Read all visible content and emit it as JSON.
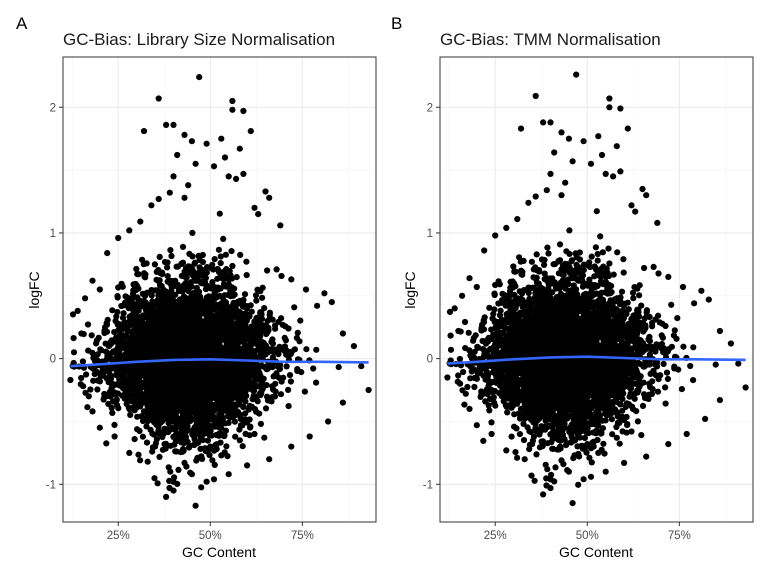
{
  "colors": {
    "background": "#ffffff",
    "panel_border": "#333333",
    "grid_major": "#ebebeb",
    "grid_minor": "#f5f5f5",
    "points": "#000000",
    "smooth_line": "#3366ff",
    "axis_text": "#4d4d4d",
    "title_text": "#1a1a1a"
  },
  "chart_data": [
    {
      "type": "scatter",
      "tag": "A",
      "title": "GC-Bias: Library Size Normalisation",
      "xlabel": "GC Content",
      "ylabel": "logFC",
      "xlim": [
        0.1,
        0.95
      ],
      "ylim": [
        -1.3,
        2.4
      ],
      "x_ticks": [
        0.25,
        0.5,
        0.75
      ],
      "x_tick_labels": [
        "25%",
        "50%",
        "75%"
      ],
      "y_ticks": [
        -1,
        0,
        1,
        2
      ],
      "y_tick_labels": [
        "-1",
        "0",
        "1",
        "2"
      ],
      "grid": true,
      "smooth": {
        "x": [
          0.12,
          0.2,
          0.3,
          0.4,
          0.5,
          0.6,
          0.7,
          0.8,
          0.93
        ],
        "y": [
          -0.06,
          -0.045,
          -0.025,
          -0.01,
          -0.005,
          -0.015,
          -0.025,
          -0.025,
          -0.03
        ]
      },
      "points_outliers": [
        [
          0.47,
          2.24
        ],
        [
          0.36,
          2.07
        ],
        [
          0.56,
          2.05
        ],
        [
          0.56,
          1.98
        ],
        [
          0.59,
          1.97
        ],
        [
          0.32,
          1.81
        ],
        [
          0.38,
          1.86
        ],
        [
          0.4,
          1.86
        ],
        [
          0.43,
          1.78
        ],
        [
          0.45,
          1.73
        ],
        [
          0.49,
          1.71
        ],
        [
          0.53,
          1.75
        ],
        [
          0.54,
          1.6
        ],
        [
          0.58,
          1.67
        ],
        [
          0.61,
          1.81
        ],
        [
          0.41,
          1.62
        ],
        [
          0.46,
          1.55
        ],
        [
          0.51,
          1.53
        ],
        [
          0.55,
          1.45
        ],
        [
          0.57,
          1.43
        ],
        [
          0.59,
          1.47
        ],
        [
          0.65,
          1.33
        ],
        [
          0.66,
          1.28
        ],
        [
          0.62,
          1.2
        ],
        [
          0.44,
          1.38
        ],
        [
          0.39,
          1.32
        ],
        [
          0.36,
          1.27
        ],
        [
          0.34,
          1.22
        ],
        [
          0.4,
          1.45
        ],
        [
          0.43,
          1.28
        ],
        [
          0.69,
          1.06
        ],
        [
          0.63,
          1.15
        ],
        [
          0.31,
          1.09
        ],
        [
          0.28,
          1.02
        ],
        [
          0.25,
          0.96
        ],
        [
          0.22,
          0.84
        ],
        [
          0.18,
          0.62
        ],
        [
          0.16,
          0.48
        ],
        [
          0.14,
          0.38
        ],
        [
          0.15,
          0.2
        ],
        [
          0.12,
          -0.17
        ],
        [
          0.13,
          0.05
        ],
        [
          0.17,
          -0.3
        ],
        [
          0.2,
          0.55
        ],
        [
          0.93,
          -0.25
        ],
        [
          0.91,
          -0.06
        ],
        [
          0.89,
          0.1
        ],
        [
          0.86,
          0.2
        ],
        [
          0.83,
          0.45
        ],
        [
          0.81,
          0.52
        ],
        [
          0.79,
          0.42
        ],
        [
          0.76,
          0.55
        ],
        [
          0.72,
          0.63
        ],
        [
          0.68,
          0.71
        ],
        [
          0.86,
          -0.35
        ],
        [
          0.82,
          -0.5
        ],
        [
          0.77,
          -0.62
        ],
        [
          0.72,
          -0.7
        ],
        [
          0.66,
          -0.8
        ],
        [
          0.6,
          -0.85
        ],
        [
          0.55,
          -0.92
        ],
        [
          0.51,
          -0.96
        ],
        [
          0.45,
          -0.92
        ],
        [
          0.4,
          -0.98
        ],
        [
          0.38,
          -1.1
        ],
        [
          0.4,
          -1.05
        ],
        [
          0.46,
          -1.17
        ],
        [
          0.33,
          -0.82
        ],
        [
          0.28,
          -0.75
        ],
        [
          0.24,
          -0.62
        ],
        [
          0.2,
          -0.55
        ],
        [
          0.18,
          -0.42
        ],
        [
          0.5,
          -0.7
        ],
        [
          0.53,
          -0.77
        ],
        [
          0.58,
          -0.65
        ],
        [
          0.62,
          -0.6
        ],
        [
          0.35,
          -0.7
        ],
        [
          0.43,
          -0.83
        ]
      ]
    },
    {
      "type": "scatter",
      "tag": "B",
      "title": "GC-Bias: TMM Normalisation",
      "xlabel": "GC Content",
      "ylabel": "logFC",
      "xlim": [
        0.1,
        0.95
      ],
      "ylim": [
        -1.3,
        2.4
      ],
      "x_ticks": [
        0.25,
        0.5,
        0.75
      ],
      "x_tick_labels": [
        "25%",
        "50%",
        "75%"
      ],
      "y_ticks": [
        -1,
        0,
        1,
        2
      ],
      "y_tick_labels": [
        "-1",
        "0",
        "1",
        "2"
      ],
      "grid": true,
      "smooth": {
        "x": [
          0.12,
          0.2,
          0.3,
          0.4,
          0.5,
          0.6,
          0.7,
          0.8,
          0.93
        ],
        "y": [
          -0.04,
          -0.025,
          -0.005,
          0.01,
          0.015,
          0.005,
          -0.005,
          -0.005,
          -0.01
        ]
      },
      "points_outliers": [
        [
          0.47,
          2.26
        ],
        [
          0.36,
          2.09
        ],
        [
          0.56,
          2.07
        ],
        [
          0.56,
          2.0
        ],
        [
          0.59,
          1.99
        ],
        [
          0.32,
          1.83
        ],
        [
          0.38,
          1.88
        ],
        [
          0.4,
          1.88
        ],
        [
          0.43,
          1.8
        ],
        [
          0.45,
          1.75
        ],
        [
          0.49,
          1.73
        ],
        [
          0.53,
          1.77
        ],
        [
          0.54,
          1.62
        ],
        [
          0.58,
          1.69
        ],
        [
          0.61,
          1.83
        ],
        [
          0.41,
          1.64
        ],
        [
          0.46,
          1.57
        ],
        [
          0.51,
          1.55
        ],
        [
          0.55,
          1.47
        ],
        [
          0.57,
          1.45
        ],
        [
          0.59,
          1.49
        ],
        [
          0.65,
          1.35
        ],
        [
          0.66,
          1.3
        ],
        [
          0.62,
          1.22
        ],
        [
          0.44,
          1.4
        ],
        [
          0.39,
          1.34
        ],
        [
          0.36,
          1.29
        ],
        [
          0.34,
          1.24
        ],
        [
          0.4,
          1.47
        ],
        [
          0.43,
          1.3
        ],
        [
          0.69,
          1.08
        ],
        [
          0.63,
          1.17
        ],
        [
          0.31,
          1.11
        ],
        [
          0.28,
          1.04
        ],
        [
          0.25,
          0.98
        ],
        [
          0.22,
          0.86
        ],
        [
          0.18,
          0.64
        ],
        [
          0.16,
          0.5
        ],
        [
          0.14,
          0.4
        ],
        [
          0.15,
          0.22
        ],
        [
          0.12,
          -0.15
        ],
        [
          0.13,
          0.07
        ],
        [
          0.17,
          -0.28
        ],
        [
          0.2,
          0.57
        ],
        [
          0.93,
          -0.23
        ],
        [
          0.91,
          -0.04
        ],
        [
          0.89,
          0.12
        ],
        [
          0.86,
          0.22
        ],
        [
          0.83,
          0.47
        ],
        [
          0.81,
          0.54
        ],
        [
          0.79,
          0.44
        ],
        [
          0.76,
          0.57
        ],
        [
          0.72,
          0.65
        ],
        [
          0.68,
          0.73
        ],
        [
          0.86,
          -0.33
        ],
        [
          0.82,
          -0.48
        ],
        [
          0.77,
          -0.6
        ],
        [
          0.72,
          -0.68
        ],
        [
          0.66,
          -0.78
        ],
        [
          0.6,
          -0.83
        ],
        [
          0.55,
          -0.9
        ],
        [
          0.51,
          -0.94
        ],
        [
          0.45,
          -0.9
        ],
        [
          0.4,
          -0.96
        ],
        [
          0.38,
          -1.08
        ],
        [
          0.4,
          -1.03
        ],
        [
          0.46,
          -1.15
        ],
        [
          0.33,
          -0.8
        ],
        [
          0.28,
          -0.73
        ],
        [
          0.24,
          -0.6
        ],
        [
          0.2,
          -0.53
        ],
        [
          0.18,
          -0.4
        ],
        [
          0.5,
          -0.68
        ],
        [
          0.53,
          -0.75
        ],
        [
          0.58,
          -0.63
        ],
        [
          0.62,
          -0.58
        ],
        [
          0.35,
          -0.68
        ],
        [
          0.43,
          -0.81
        ]
      ]
    }
  ]
}
